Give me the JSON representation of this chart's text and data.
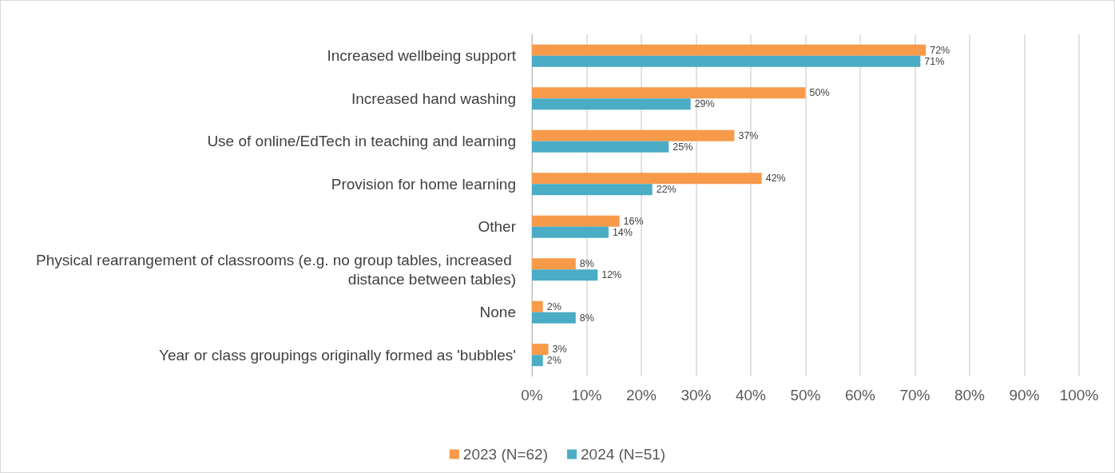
{
  "chart_data": {
    "type": "bar",
    "orientation": "horizontal",
    "categories": [
      "Increased wellbeing support",
      "Increased hand washing",
      "Use of online/EdTech in teaching and learning",
      "Provision for home learning",
      "Other",
      "Physical rearrangement of classrooms (e.g. no group tables, increased distance between tables)",
      "None",
      "Year or class groupings originally formed as 'bubbles'"
    ],
    "series": [
      {
        "name": "2023 (N=62)",
        "color": "#f79a4a",
        "values": [
          72,
          50,
          37,
          42,
          16,
          8,
          2,
          3
        ],
        "value_labels": [
          "72%",
          "50%",
          "37%",
          "42%",
          "16%",
          "8%",
          "2%",
          "3%"
        ]
      },
      {
        "name": "2024 (N=51)",
        "color": "#4aacc5",
        "values": [
          71,
          29,
          25,
          22,
          14,
          12,
          8,
          2
        ],
        "value_labels": [
          "71%",
          "29%",
          "25%",
          "22%",
          "14%",
          "12%",
          "8%",
          "2%"
        ]
      }
    ],
    "xlim": [
      0,
      100
    ],
    "xticks": [
      {
        "value": 0,
        "label": "0%"
      },
      {
        "value": 10,
        "label": "10%"
      },
      {
        "value": 20,
        "label": "20%"
      },
      {
        "value": 30,
        "label": "30%"
      },
      {
        "value": 40,
        "label": "40%"
      },
      {
        "value": 50,
        "label": "50%"
      },
      {
        "value": 60,
        "label": "60%"
      },
      {
        "value": 70,
        "label": "70%"
      },
      {
        "value": 80,
        "label": "80%"
      },
      {
        "value": 90,
        "label": "90%"
      },
      {
        "value": 100,
        "label": "100%"
      }
    ],
    "grid": "x",
    "legend": "bottom"
  }
}
